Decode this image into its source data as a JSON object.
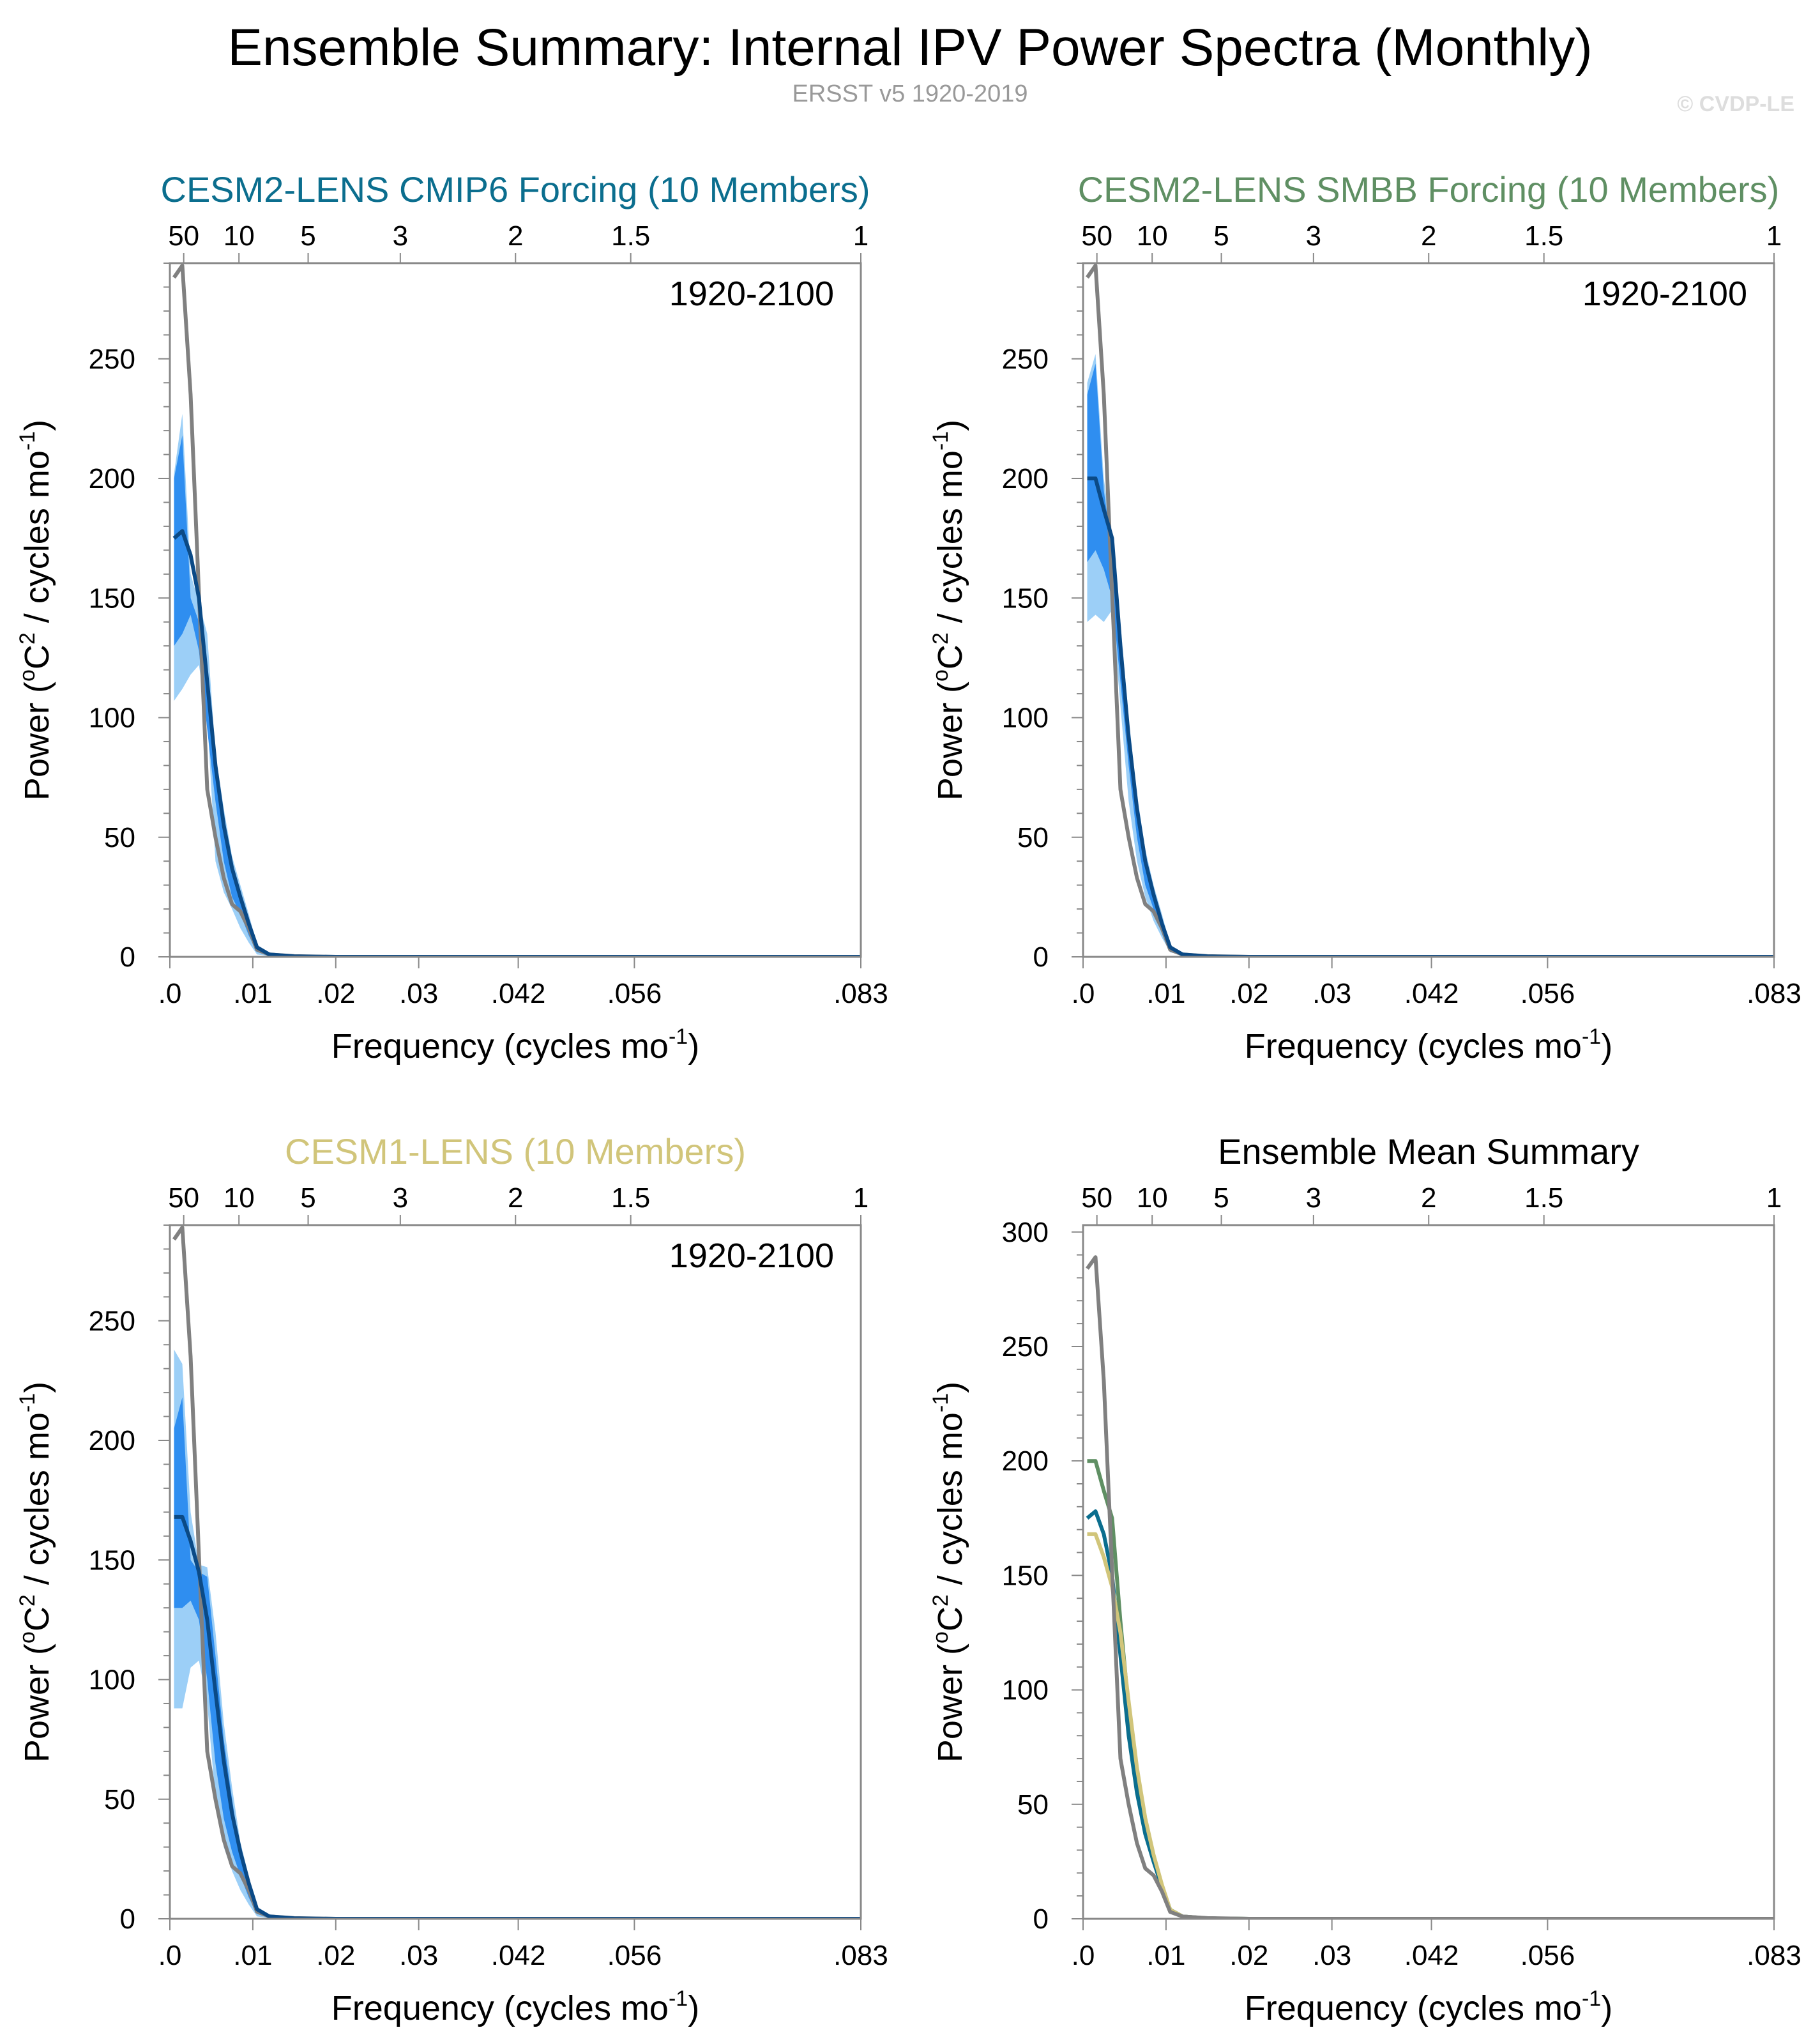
{
  "figure": {
    "title": "Ensemble Summary: Internal IPV Power Spectra (Monthly)",
    "subtitle": "ERSST v5 1920-2019",
    "copyright": "© CVDP-LE"
  },
  "colors": {
    "obs": "#808080",
    "band_outer": "#9ccff7",
    "band_inner": "#2f8ef0",
    "ens_mean": "#0b4a86",
    "cmip6": "#0b6e8e",
    "smbb": "#5f8f63",
    "cesm1": "#d1c57a",
    "axis": "#888888"
  },
  "chart_data": [
    {
      "type": "line",
      "title": "CESM2-LENS CMIP6 Forcing (10 Members)",
      "title_color": "#0b6e8e",
      "period_label": "1920-2100",
      "xlabel": "Frequency (cycles mo",
      "xlabel_sup": "-1",
      "xlabel_end": ")",
      "ylabel": "Power (",
      "ylabel_sup1": "o",
      "ylabel_mid": "C",
      "ylabel_sup2": "2",
      "ylabel_mid2": " / cycles mo",
      "ylabel_sup3": "-1",
      "ylabel_end": ")",
      "xlim": [
        0,
        0.0833
      ],
      "ylim": [
        0,
        290
      ],
      "xticks": [
        {
          "value": 0,
          "label": ".0"
        },
        {
          "value": 0.01,
          "label": ".01"
        },
        {
          "value": 0.02,
          "label": ".02"
        },
        {
          "value": 0.03,
          "label": ".03"
        },
        {
          "value": 0.042,
          "label": ".042"
        },
        {
          "value": 0.056,
          "label": ".056"
        },
        {
          "value": 0.0833,
          "label": ".083"
        }
      ],
      "top_ticks": [
        {
          "value": 0.00167,
          "label": "50"
        },
        {
          "value": 0.00833,
          "label": "10"
        },
        {
          "value": 0.01667,
          "label": "5"
        },
        {
          "value": 0.02778,
          "label": "3"
        },
        {
          "value": 0.04167,
          "label": "2"
        },
        {
          "value": 0.05556,
          "label": "1.5"
        },
        {
          "value": 0.0833,
          "label": "1"
        }
      ],
      "yticks": [
        0,
        50,
        100,
        150,
        200,
        250
      ],
      "obs": {
        "x": [
          0.0005,
          0.0015,
          0.0025,
          0.0035,
          0.0045,
          0.0055,
          0.0065,
          0.0075,
          0.0085,
          0.0095,
          0.0105,
          0.012,
          0.015,
          0.02,
          0.04,
          0.0833
        ],
        "y": [
          284,
          289,
          235,
          152,
          70,
          50,
          33,
          22,
          19,
          12,
          3,
          1,
          0.3,
          0,
          0,
          0
        ]
      },
      "outer_band": {
        "x": [
          0.0005,
          0.0015,
          0.0025,
          0.0035,
          0.0045,
          0.0055,
          0.0065,
          0.0075,
          0.0085,
          0.0095,
          0.0105,
          0.012,
          0.015,
          0.02,
          0.0833
        ],
        "upper": [
          202,
          227,
          160,
          148,
          135,
          85,
          62,
          42,
          30,
          18,
          5,
          1.5,
          0.3,
          0,
          0
        ],
        "lower": [
          107,
          112,
          118,
          122,
          100,
          40,
          27,
          20,
          12,
          6,
          1,
          0.3,
          0,
          0,
          0
        ]
      },
      "inner_band": {
        "x": [
          0.0005,
          0.0015,
          0.0025,
          0.0035,
          0.0045,
          0.0055,
          0.0065,
          0.0075,
          0.0085,
          0.0095,
          0.0105,
          0.012,
          0.015,
          0.02,
          0.0833
        ],
        "upper": [
          200,
          218,
          150,
          140,
          118,
          82,
          58,
          38,
          26,
          15,
          4,
          1,
          0.2,
          0,
          0
        ],
        "lower": [
          130,
          135,
          143,
          128,
          95,
          65,
          40,
          25,
          18,
          9,
          2,
          0.5,
          0,
          0,
          0
        ]
      },
      "mean": {
        "x": [
          0.0005,
          0.0015,
          0.0025,
          0.0035,
          0.0045,
          0.0055,
          0.0065,
          0.0075,
          0.0085,
          0.0095,
          0.0105,
          0.012,
          0.015,
          0.02,
          0.0833
        ],
        "y": [
          175,
          178,
          168,
          150,
          115,
          80,
          55,
          37,
          25,
          14,
          4,
          1,
          0.2,
          0,
          0
        ]
      }
    },
    {
      "type": "line",
      "title": "CESM2-LENS SMBB Forcing (10 Members)",
      "title_color": "#5f8f63",
      "period_label": "1920-2100",
      "xlabel": "Frequency (cycles mo",
      "xlabel_sup": "-1",
      "xlabel_end": ")",
      "ylabel": "Power (",
      "ylabel_sup1": "o",
      "ylabel_mid": "C",
      "ylabel_sup2": "2",
      "ylabel_mid2": " / cycles mo",
      "ylabel_sup3": "-1",
      "ylabel_end": ")",
      "xlim": [
        0,
        0.0833
      ],
      "ylim": [
        0,
        290
      ],
      "xticks": [
        {
          "value": 0,
          "label": ".0"
        },
        {
          "value": 0.01,
          "label": ".01"
        },
        {
          "value": 0.02,
          "label": ".02"
        },
        {
          "value": 0.03,
          "label": ".03"
        },
        {
          "value": 0.042,
          "label": ".042"
        },
        {
          "value": 0.056,
          "label": ".056"
        },
        {
          "value": 0.0833,
          "label": ".083"
        }
      ],
      "top_ticks": [
        {
          "value": 0.00167,
          "label": "50"
        },
        {
          "value": 0.00833,
          "label": "10"
        },
        {
          "value": 0.01667,
          "label": "5"
        },
        {
          "value": 0.02778,
          "label": "3"
        },
        {
          "value": 0.04167,
          "label": "2"
        },
        {
          "value": 0.05556,
          "label": "1.5"
        },
        {
          "value": 0.0833,
          "label": "1"
        }
      ],
      "yticks": [
        0,
        50,
        100,
        150,
        200,
        250
      ],
      "obs": {
        "x": [
          0.0005,
          0.0015,
          0.0025,
          0.0035,
          0.0045,
          0.0055,
          0.0065,
          0.0075,
          0.0085,
          0.0095,
          0.0105,
          0.012,
          0.015,
          0.02,
          0.04,
          0.0833
        ],
        "y": [
          284,
          289,
          235,
          152,
          70,
          50,
          33,
          22,
          19,
          12,
          3,
          1,
          0.3,
          0,
          0,
          0
        ]
      },
      "outer_band": {
        "x": [
          0.0005,
          0.0015,
          0.0025,
          0.0035,
          0.0045,
          0.0055,
          0.0065,
          0.0075,
          0.0085,
          0.0095,
          0.0105,
          0.012,
          0.015,
          0.02,
          0.0833
        ],
        "upper": [
          240,
          252,
          200,
          175,
          140,
          100,
          68,
          45,
          30,
          18,
          5,
          1.5,
          0.3,
          0,
          0
        ],
        "lower": [
          140,
          143,
          140,
          145,
          105,
          65,
          40,
          25,
          15,
          8,
          2,
          0.5,
          0,
          0,
          0
        ]
      },
      "inner_band": {
        "x": [
          0.0005,
          0.0015,
          0.0025,
          0.0035,
          0.0045,
          0.0055,
          0.0065,
          0.0075,
          0.0085,
          0.0095,
          0.0105,
          0.012,
          0.015,
          0.02,
          0.0833
        ],
        "upper": [
          235,
          248,
          195,
          170,
          135,
          95,
          65,
          42,
          28,
          16,
          4,
          1,
          0.2,
          0,
          0
        ],
        "lower": [
          165,
          170,
          162,
          150,
          115,
          80,
          50,
          30,
          20,
          10,
          2,
          0.5,
          0,
          0,
          0
        ]
      },
      "mean": {
        "x": [
          0.0005,
          0.0015,
          0.0025,
          0.0035,
          0.0045,
          0.0055,
          0.0065,
          0.0075,
          0.0085,
          0.0095,
          0.0105,
          0.012,
          0.015,
          0.02,
          0.0833
        ],
        "y": [
          200,
          200,
          187,
          175,
          130,
          92,
          62,
          40,
          26,
          14,
          4,
          1,
          0.2,
          0,
          0
        ]
      }
    },
    {
      "type": "line",
      "title": "CESM1-LENS (10 Members)",
      "title_color": "#d1c57a",
      "period_label": "1920-2100",
      "xlabel": "Frequency (cycles mo",
      "xlabel_sup": "-1",
      "xlabel_end": ")",
      "ylabel": "Power (",
      "ylabel_sup1": "o",
      "ylabel_mid": "C",
      "ylabel_sup2": "2",
      "ylabel_mid2": " / cycles mo",
      "ylabel_sup3": "-1",
      "ylabel_end": ")",
      "xlim": [
        0,
        0.0833
      ],
      "ylim": [
        0,
        290
      ],
      "xticks": [
        {
          "value": 0,
          "label": ".0"
        },
        {
          "value": 0.01,
          "label": ".01"
        },
        {
          "value": 0.02,
          "label": ".02"
        },
        {
          "value": 0.03,
          "label": ".03"
        },
        {
          "value": 0.042,
          "label": ".042"
        },
        {
          "value": 0.056,
          "label": ".056"
        },
        {
          "value": 0.0833,
          "label": ".083"
        }
      ],
      "top_ticks": [
        {
          "value": 0.00167,
          "label": "50"
        },
        {
          "value": 0.00833,
          "label": "10"
        },
        {
          "value": 0.01667,
          "label": "5"
        },
        {
          "value": 0.02778,
          "label": "3"
        },
        {
          "value": 0.04167,
          "label": "2"
        },
        {
          "value": 0.05556,
          "label": "1.5"
        },
        {
          "value": 0.0833,
          "label": "1"
        }
      ],
      "yticks": [
        0,
        50,
        100,
        150,
        200,
        250
      ],
      "obs": {
        "x": [
          0.0005,
          0.0015,
          0.0025,
          0.0035,
          0.0045,
          0.0055,
          0.0065,
          0.0075,
          0.0085,
          0.0095,
          0.0105,
          0.012,
          0.015,
          0.02,
          0.04,
          0.0833
        ],
        "y": [
          284,
          289,
          235,
          152,
          70,
          50,
          33,
          22,
          19,
          12,
          3,
          1,
          0.3,
          0,
          0,
          0
        ]
      },
      "outer_band": {
        "x": [
          0.0005,
          0.0015,
          0.0025,
          0.0035,
          0.0045,
          0.0055,
          0.0065,
          0.0075,
          0.0085,
          0.0095,
          0.0105,
          0.012,
          0.015,
          0.02,
          0.0833
        ],
        "upper": [
          238,
          232,
          170,
          148,
          147,
          120,
          82,
          55,
          32,
          18,
          5,
          1.5,
          0.3,
          0,
          0
        ],
        "lower": [
          88,
          88,
          105,
          108,
          90,
          50,
          30,
          20,
          12,
          6,
          1,
          0.3,
          0,
          0,
          0
        ]
      },
      "inner_band": {
        "x": [
          0.0005,
          0.0015,
          0.0025,
          0.0035,
          0.0045,
          0.0055,
          0.0065,
          0.0075,
          0.0085,
          0.0095,
          0.0105,
          0.012,
          0.015,
          0.02,
          0.0833
        ],
        "upper": [
          205,
          218,
          150,
          145,
          143,
          110,
          75,
          50,
          28,
          15,
          4,
          1,
          0.2,
          0,
          0
        ],
        "lower": [
          130,
          130,
          133,
          125,
          100,
          65,
          42,
          28,
          18,
          9,
          2,
          0.5,
          0,
          0,
          0
        ]
      },
      "mean": {
        "x": [
          0.0005,
          0.0015,
          0.0025,
          0.0035,
          0.0045,
          0.0055,
          0.0065,
          0.0075,
          0.0085,
          0.0095,
          0.0105,
          0.012,
          0.015,
          0.02,
          0.0833
        ],
        "y": [
          168,
          168,
          158,
          145,
          125,
          95,
          66,
          44,
          28,
          15,
          4,
          1,
          0.2,
          0,
          0
        ]
      }
    },
    {
      "type": "line",
      "title": "Ensemble Mean Summary",
      "title_color": "#000000",
      "period_label": "",
      "xlabel": "Frequency (cycles mo",
      "xlabel_sup": "-1",
      "xlabel_end": ")",
      "ylabel": "Power (",
      "ylabel_sup1": "o",
      "ylabel_mid": "C",
      "ylabel_sup2": "2",
      "ylabel_mid2": " / cycles mo",
      "ylabel_sup3": "-1",
      "ylabel_end": ")",
      "xlim": [
        0,
        0.0833
      ],
      "ylim": [
        0,
        303
      ],
      "xticks": [
        {
          "value": 0,
          "label": ".0"
        },
        {
          "value": 0.01,
          "label": ".01"
        },
        {
          "value": 0.02,
          "label": ".02"
        },
        {
          "value": 0.03,
          "label": ".03"
        },
        {
          "value": 0.042,
          "label": ".042"
        },
        {
          "value": 0.056,
          "label": ".056"
        },
        {
          "value": 0.0833,
          "label": ".083"
        }
      ],
      "top_ticks": [
        {
          "value": 0.00167,
          "label": "50"
        },
        {
          "value": 0.00833,
          "label": "10"
        },
        {
          "value": 0.01667,
          "label": "5"
        },
        {
          "value": 0.02778,
          "label": "3"
        },
        {
          "value": 0.04167,
          "label": "2"
        },
        {
          "value": 0.05556,
          "label": "1.5"
        },
        {
          "value": 0.0833,
          "label": "1"
        }
      ],
      "yticks": [
        0,
        50,
        100,
        150,
        200,
        250,
        300
      ],
      "series": [
        {
          "name": "CESM2-LENS SMBB Forcing",
          "color": "#5f8f63",
          "x": [
            0.0005,
            0.0015,
            0.0025,
            0.0035,
            0.0045,
            0.0055,
            0.0065,
            0.0075,
            0.0085,
            0.0095,
            0.0105,
            0.012,
            0.015,
            0.02,
            0.0833
          ],
          "y": [
            200,
            200,
            187,
            175,
            130,
            92,
            62,
            40,
            26,
            14,
            4,
            1,
            0.2,
            0,
            0
          ]
        },
        {
          "name": "CESM2-LENS CMIP6 Forcing",
          "color": "#0b6e8e",
          "x": [
            0.0005,
            0.0015,
            0.0025,
            0.0035,
            0.0045,
            0.0055,
            0.0065,
            0.0075,
            0.0085,
            0.0095,
            0.0105,
            0.012,
            0.015,
            0.02,
            0.0833
          ],
          "y": [
            175,
            178,
            168,
            150,
            115,
            80,
            55,
            37,
            25,
            14,
            4,
            1,
            0.2,
            0,
            0
          ]
        },
        {
          "name": "CESM1-LENS",
          "color": "#d1c57a",
          "x": [
            0.0005,
            0.0015,
            0.0025,
            0.0035,
            0.0045,
            0.0055,
            0.0065,
            0.0075,
            0.0085,
            0.0095,
            0.0105,
            0.012,
            0.015,
            0.02,
            0.0833
          ],
          "y": [
            168,
            168,
            158,
            145,
            125,
            95,
            66,
            44,
            28,
            15,
            4,
            1,
            0.2,
            0,
            0
          ]
        },
        {
          "name": "ERSST v5",
          "color": "#808080",
          "x": [
            0.0005,
            0.0015,
            0.0025,
            0.0035,
            0.0045,
            0.0055,
            0.0065,
            0.0075,
            0.0085,
            0.0095,
            0.0105,
            0.012,
            0.015,
            0.02,
            0.04,
            0.0833
          ],
          "y": [
            284,
            289,
            235,
            152,
            70,
            50,
            33,
            22,
            19,
            12,
            3,
            1,
            0.3,
            0,
            0,
            0
          ]
        }
      ]
    }
  ]
}
